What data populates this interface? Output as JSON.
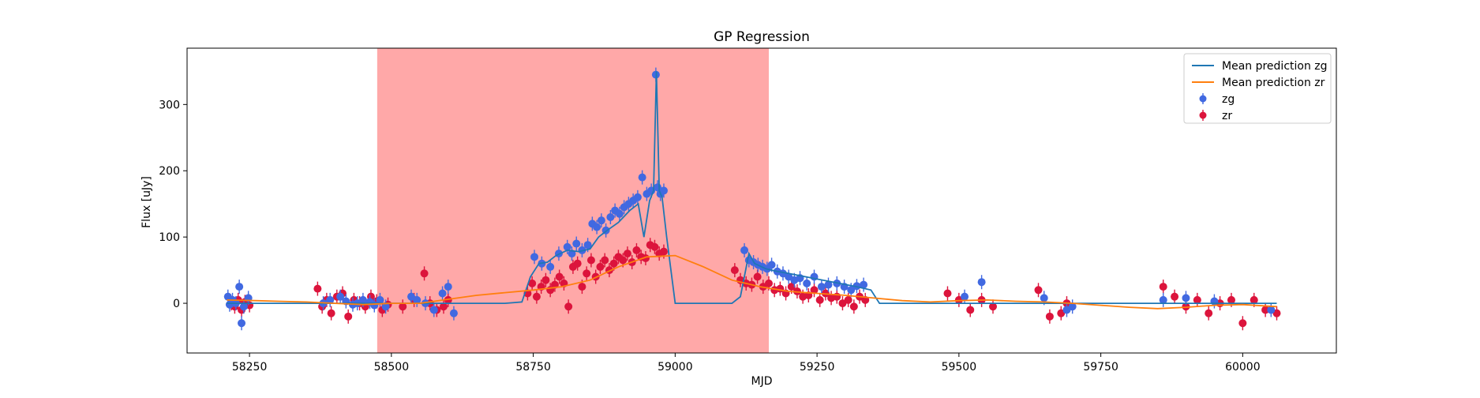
{
  "chart_data": {
    "type": "scatter",
    "title": "GP Regression",
    "xlabel": "MJD",
    "ylabel": "Flux [uJy]",
    "xlim": [
      58140,
      60165
    ],
    "ylim": [
      -75,
      385
    ],
    "xticks": [
      58250,
      58500,
      58750,
      59000,
      59250,
      59500,
      59750,
      60000
    ],
    "yticks": [
      0,
      100,
      200,
      300
    ],
    "grid": false,
    "legend_position": "top-right",
    "shaded_region": {
      "x_start": 58475,
      "x_end": 59165,
      "color": "#ff0000",
      "opacity": 0.34
    },
    "colors": {
      "zg_points": "#4169e1",
      "zr_points": "#dc143c",
      "zg_line": "#1f77b4",
      "zr_line": "#ff7f0e"
    },
    "series": [
      {
        "name": "Mean prediction zg",
        "kind": "line",
        "color": "#1f77b4",
        "x": [
          58210,
          58300,
          58380,
          58440,
          58475,
          58520,
          58600,
          58700,
          58730,
          58745,
          58760,
          58775,
          58790,
          58810,
          58830,
          58850,
          58865,
          58880,
          58900,
          58920,
          58935,
          58945,
          58955,
          58962,
          58967,
          58972,
          58977,
          58985,
          59000,
          59010,
          59025,
          59040,
          59100,
          59115,
          59130,
          59140,
          59160,
          59180,
          59200,
          59230,
          59260,
          59290,
          59320,
          59345,
          59360,
          59400,
          59500,
          59600,
          59700,
          59800,
          59900,
          60000,
          60060
        ],
        "y": [
          0,
          0,
          0,
          0,
          0,
          0,
          0,
          0,
          2,
          40,
          60,
          62,
          72,
          80,
          78,
          82,
          100,
          110,
          122,
          140,
          150,
          100,
          155,
          170,
          350,
          170,
          160,
          100,
          0,
          0,
          0,
          0,
          0,
          10,
          75,
          60,
          52,
          48,
          45,
          40,
          35,
          30,
          25,
          20,
          0,
          0,
          0,
          0,
          0,
          0,
          0,
          0,
          0
        ]
      },
      {
        "name": "Mean prediction zr",
        "kind": "line",
        "color": "#ff7f0e",
        "x": [
          58210,
          58260,
          58300,
          58350,
          58400,
          58450,
          58500,
          58550,
          58600,
          58650,
          58700,
          58750,
          58800,
          58850,
          58900,
          58950,
          59000,
          59050,
          59100,
          59150,
          59200,
          59250,
          59300,
          59350,
          59400,
          59450,
          59500,
          59550,
          59600,
          59650,
          59700,
          59750,
          59800,
          59850,
          59900,
          59950,
          60000,
          60060
        ],
        "y": [
          5,
          4,
          3,
          2,
          0,
          -2,
          0,
          0,
          6,
          12,
          16,
          20,
          25,
          35,
          55,
          70,
          72,
          55,
          35,
          25,
          18,
          15,
          12,
          8,
          4,
          2,
          4,
          5,
          3,
          2,
          0,
          -3,
          -6,
          -8,
          -6,
          -3,
          -2,
          -5
        ]
      },
      {
        "name": "zg",
        "kind": "points",
        "color": "#4169e1",
        "x": [
          58212,
          58215,
          58220,
          58226,
          58232,
          58236,
          58240,
          58248,
          58380,
          58392,
          58410,
          58420,
          58432,
          58440,
          58450,
          58462,
          58470,
          58480,
          58490,
          58535,
          58545,
          58560,
          58575,
          58590,
          58600,
          58610,
          58752,
          58765,
          58780,
          58795,
          58810,
          58818,
          58826,
          58836,
          58846,
          58854,
          58862,
          58870,
          58878,
          58886,
          58894,
          58902,
          58910,
          58918,
          58926,
          58934,
          58942,
          58950,
          58958,
          58966,
          58969,
          58974,
          58980,
          59122,
          59130,
          59138,
          59146,
          59154,
          59162,
          59170,
          59180,
          59190,
          59200,
          59210,
          59220,
          59232,
          59245,
          59258,
          59270,
          59285,
          59298,
          59310,
          59320,
          59332,
          59510,
          59540,
          59650,
          59690,
          59700,
          59860,
          59900,
          59950,
          60050
        ],
        "y": [
          10,
          -2,
          5,
          0,
          25,
          -30,
          -5,
          8,
          0,
          5,
          10,
          3,
          -2,
          0,
          5,
          2,
          -3,
          5,
          -5,
          10,
          5,
          0,
          -10,
          15,
          25,
          -15,
          70,
          60,
          55,
          75,
          85,
          75,
          90,
          80,
          88,
          120,
          115,
          125,
          110,
          130,
          140,
          135,
          145,
          150,
          155,
          160,
          190,
          165,
          170,
          345,
          175,
          165,
          170,
          80,
          65,
          62,
          58,
          55,
          52,
          58,
          48,
          45,
          40,
          35,
          38,
          30,
          40,
          25,
          28,
          30,
          25,
          20,
          26,
          28,
          10,
          32,
          8,
          -10,
          -5,
          5,
          8,
          3,
          -10
        ]
      },
      {
        "name": "zr",
        "kind": "points",
        "color": "#dc143c",
        "x": [
          58218,
          58224,
          58230,
          58236,
          58242,
          58250,
          58370,
          58378,
          58386,
          58394,
          58404,
          58414,
          58424,
          58434,
          58444,
          58454,
          58464,
          58474,
          58484,
          58494,
          58520,
          58540,
          58558,
          58568,
          58580,
          58592,
          58600,
          58740,
          58748,
          58756,
          58764,
          58772,
          58780,
          58788,
          58796,
          58804,
          58812,
          58820,
          58828,
          58836,
          58844,
          58852,
          58860,
          58868,
          58876,
          58884,
          58892,
          58900,
          58908,
          58916,
          58924,
          58932,
          58940,
          58948,
          58956,
          58964,
          58972,
          58980,
          59105,
          59115,
          59125,
          59135,
          59145,
          59155,
          59165,
          59175,
          59185,
          59195,
          59205,
          59215,
          59225,
          59235,
          59245,
          59255,
          59265,
          59275,
          59285,
          59295,
          59305,
          59315,
          59325,
          59335,
          59480,
          59500,
          59520,
          59540,
          59560,
          59640,
          59660,
          59680,
          59690,
          59860,
          59880,
          59900,
          59920,
          59940,
          59960,
          59980,
          60000,
          60020,
          60040,
          60060
        ],
        "y": [
          0,
          -5,
          5,
          -10,
          2,
          -3,
          22,
          -5,
          5,
          -15,
          10,
          15,
          -20,
          5,
          0,
          -5,
          10,
          3,
          -10,
          -2,
          -5,
          5,
          45,
          0,
          -10,
          -5,
          5,
          15,
          30,
          10,
          25,
          35,
          20,
          28,
          40,
          30,
          -5,
          55,
          60,
          25,
          45,
          65,
          40,
          55,
          65,
          50,
          60,
          70,
          65,
          75,
          62,
          80,
          70,
          68,
          88,
          85,
          75,
          78,
          50,
          35,
          30,
          28,
          40,
          25,
          30,
          20,
          22,
          15,
          25,
          18,
          10,
          12,
          20,
          5,
          15,
          8,
          10,
          0,
          5,
          -5,
          10,
          5,
          15,
          5,
          -10,
          5,
          -5,
          20,
          -20,
          -15,
          0,
          25,
          10,
          -5,
          5,
          -15,
          0,
          5,
          -30,
          5,
          -10,
          -15
        ]
      }
    ]
  }
}
